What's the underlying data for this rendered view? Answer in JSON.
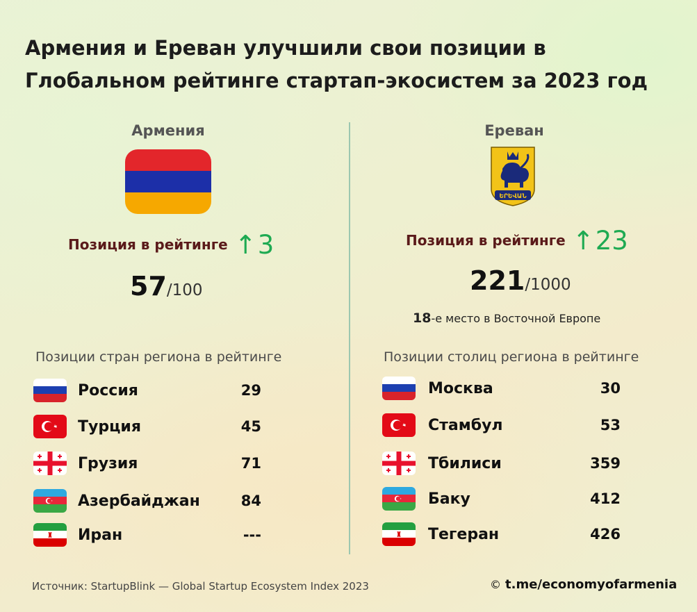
{
  "title_line1": "Армения и Ереван улучшили свои позиции в",
  "title_line2": "Глобальном рейтинге стартап-экосистем за 2023 год",
  "armenia": {
    "title": "Армения",
    "position_label": "Позиция в рейтинге",
    "arrow": "↑",
    "change": "3",
    "score": "57",
    "score_of": "/100",
    "section_title": "Позиции стран региона в рейтинге",
    "rows": [
      {
        "name": "Россия",
        "value": "29",
        "flag": "russia"
      },
      {
        "name": "Турция",
        "value": "45",
        "flag": "turkey"
      },
      {
        "name": "Грузия",
        "value": "71",
        "flag": "georgia"
      },
      {
        "name": "Азербайджан",
        "value": "84",
        "flag": "azerbaijan"
      },
      {
        "name": "Иран",
        "value": "---",
        "flag": "iran"
      }
    ]
  },
  "yerevan": {
    "title": "Ереван",
    "coat_text": "ԵՐԵՎԱՆ",
    "position_label": "Позиция в рейтинге",
    "arrow": "↑",
    "change": "23",
    "score": "221",
    "score_of": "/1000",
    "east_rank": "18",
    "east_text": "-е место в Восточной Европе",
    "section_title": "Позиции столиц региона в рейтинге",
    "rows": [
      {
        "name": "Москва",
        "value": "30",
        "flag": "russia"
      },
      {
        "name": "Стамбул",
        "value": "53",
        "flag": "turkey"
      },
      {
        "name": "Тбилиси",
        "value": "359",
        "flag": "georgia"
      },
      {
        "name": "Баку",
        "value": "412",
        "flag": "azerbaijan"
      },
      {
        "name": "Тегеран",
        "value": "426",
        "flag": "iran"
      }
    ]
  },
  "footer": {
    "source": "Источник: StartupBlink — Global Startup Ecosystem Index 2023",
    "copyright": "©",
    "link": "t.me/economyofarmenia"
  },
  "colors": {
    "arrow_green": "#1eaa52",
    "label_maroon": "#5a1a1a",
    "divider": "#9cc7b0",
    "armenia_red": "#e3262b",
    "armenia_blue": "#1c2fa8",
    "armenia_orange": "#f6a800"
  }
}
